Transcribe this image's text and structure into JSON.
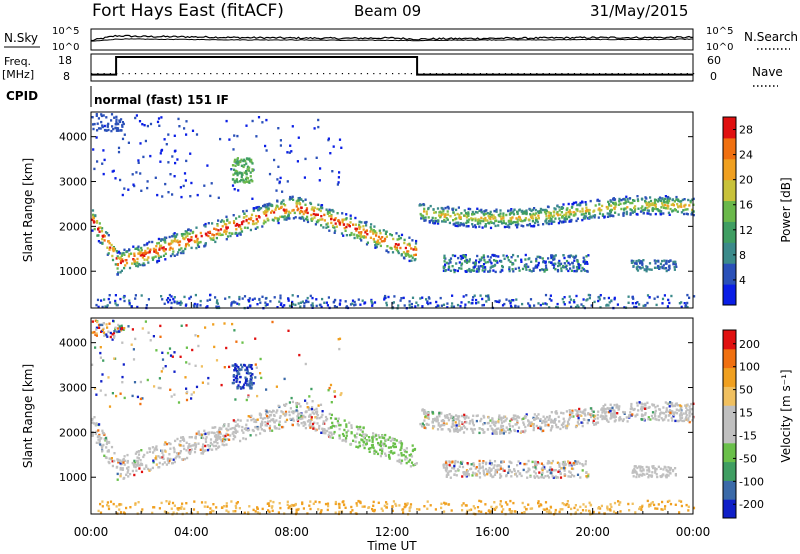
{
  "header": {
    "station": "Fort Hays East (fitACF)",
    "beam": "Beam 09",
    "date": "31/May/2015"
  },
  "left_labels": {
    "nsky": "N.Sky",
    "freq": "Freq.",
    "freq_unit": "[MHz]",
    "cpid": "CPID"
  },
  "right_labels": {
    "nsearch": "N.Search",
    "nave": "Nave"
  },
  "cpid_text": "normal (fast) 151 IF",
  "colors": {
    "power_scale": [
      "#0a1ee6",
      "#2a50b8",
      "#3b8a8a",
      "#3f9e62",
      "#6ab84a",
      "#c8c23a",
      "#f0a020",
      "#f07010",
      "#e01010"
    ],
    "velocity_scale": [
      "#e01010",
      "#f07010",
      "#f0a020",
      "#f0c060",
      "#c0c0c0",
      "#c0c0c0",
      "#6ac04a",
      "#3f9e62",
      "#3b6aa8",
      "#1020c8"
    ]
  },
  "chart_data": [
    {
      "type": "line",
      "name_panel": "noise",
      "ylim_left": [
        "10^0",
        "10^5"
      ],
      "ylim_right": [
        "10^0",
        "10^5"
      ],
      "left_ticks": [
        "10^5",
        "10^0"
      ],
      "right_ticks": [
        "10^5",
        "10^0"
      ],
      "x_hours": [
        0,
        1,
        2,
        4,
        6,
        8,
        10,
        12,
        13,
        14,
        16,
        18,
        20,
        22,
        24
      ],
      "series": [
        {
          "values": [
            2.2,
            3.5,
            3.3,
            3.2,
            3.0,
            2.9,
            2.8,
            2.9,
            2.6,
            2.7,
            2.8,
            2.9,
            3.0,
            3.0,
            3.1
          ]
        },
        {
          "values": [
            2.0,
            2.6,
            2.6,
            2.5,
            2.4,
            2.4,
            2.3,
            2.3,
            2.2,
            2.3,
            2.4,
            2.4,
            2.5,
            2.5,
            2.6
          ]
        }
      ]
    },
    {
      "type": "line",
      "name_panel": "frequency",
      "left_ticks": [
        "18",
        "8"
      ],
      "right_ticks": [
        "60",
        "0"
      ],
      "segments": [
        {
          "x": [
            0,
            1
          ],
          "value": 10
        },
        {
          "x": [
            1,
            13
          ],
          "value": 18
        },
        {
          "x": [
            13,
            24
          ],
          "value": 10
        }
      ],
      "nave": 12
    },
    {
      "type": "heatmap",
      "name_panel": "power",
      "ylabel": "Slant Range [km]",
      "y_ticks": [
        1000,
        2000,
        3000,
        4000
      ],
      "ylim": [
        180,
        4550
      ],
      "colorbar_label": "Power [dB]",
      "colorbar_ticks": [
        4,
        8,
        12,
        16,
        20,
        24,
        28
      ],
      "colorbar_range": [
        0,
        30
      ]
    },
    {
      "type": "heatmap",
      "name_panel": "velocity",
      "ylabel": "Slant Range [km]",
      "y_ticks": [
        1000,
        2000,
        3000,
        4000
      ],
      "ylim": [
        180,
        4550
      ],
      "colorbar_label": "Velocity [m s⁻¹]",
      "colorbar_ticks": [
        "200",
        "100",
        "50",
        "15",
        "-15",
        "-50",
        "-100",
        "-200"
      ]
    },
    {
      "type": "axis",
      "xlabel": "Time UT",
      "x_tick_labels": [
        "00:00",
        "04:00",
        "08:00",
        "12:00",
        "16:00",
        "20:00",
        "00:00"
      ],
      "x_tick_hours": [
        0,
        4,
        8,
        12,
        16,
        20,
        24
      ]
    }
  ]
}
